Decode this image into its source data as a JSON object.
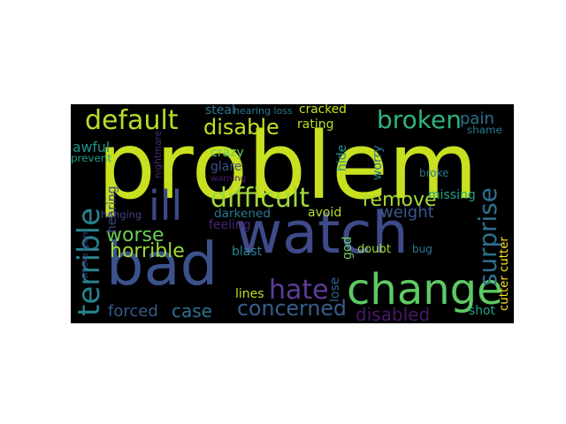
{
  "words": [
    {
      "text": "problem",
      "color": "#c8e020"
    },
    {
      "text": "watch",
      "color": "#3e4a89"
    },
    {
      "text": "bad",
      "color": "#3b528b"
    },
    {
      "text": "change",
      "color": "#5ec962"
    },
    {
      "text": "ill",
      "color": "#3e4989"
    },
    {
      "text": "terrible",
      "color": "#26828e"
    },
    {
      "text": "default",
      "color": "#b5de2b"
    },
    {
      "text": "difficult",
      "color": "#a0da39"
    },
    {
      "text": "broken",
      "color": "#2eb37c"
    },
    {
      "text": "hate",
      "color": "#5e3c99"
    },
    {
      "text": "concerned",
      "color": "#365d8d"
    },
    {
      "text": "surprise",
      "color": "#2d708e"
    },
    {
      "text": "disable",
      "color": "#c2df23"
    },
    {
      "text": "worse",
      "color": "#6ccd5a"
    },
    {
      "text": "horrible",
      "color": "#9dd93b"
    },
    {
      "text": "remove",
      "color": "#a8db34"
    },
    {
      "text": "disabled",
      "color": "#48186a"
    },
    {
      "text": "weight",
      "color": "#39568c"
    },
    {
      "text": "case",
      "color": "#2c728e"
    },
    {
      "text": "forced",
      "color": "#38588c"
    },
    {
      "text": "pain",
      "color": "#2c728e"
    },
    {
      "text": "awful",
      "color": "#21918c"
    },
    {
      "text": "prevent",
      "color": "#1f9e89"
    },
    {
      "text": "nightmare",
      "color": "#472d7b"
    },
    {
      "text": "crazy",
      "color": "#6ccd5a"
    },
    {
      "text": "glare",
      "color": "#3b528b"
    },
    {
      "text": "warning",
      "color": "#481a6c"
    },
    {
      "text": "rating",
      "color": "#b5de2b"
    },
    {
      "text": "cracked",
      "color": "#c8e020"
    },
    {
      "text": "steal",
      "color": "#2a788e"
    },
    {
      "text": "hearing loss",
      "color": "#2a788e"
    },
    {
      "text": "shame",
      "color": "#2a788e"
    },
    {
      "text": "hide",
      "color": "#21918c"
    },
    {
      "text": "worry",
      "color": "#2a788e"
    },
    {
      "text": "broke",
      "color": "#2c728e"
    },
    {
      "text": "missing",
      "color": "#20a486"
    },
    {
      "text": "darkened",
      "color": "#2a788e"
    },
    {
      "text": "avoid",
      "color": "#b5de2b"
    },
    {
      "text": "feeling",
      "color": "#482475"
    },
    {
      "text": "hanging",
      "color": "#414487"
    },
    {
      "text": "hearing",
      "color": "#3e4989"
    },
    {
      "text": "smoke glare",
      "color": "#414487"
    },
    {
      "text": "lose",
      "color": "#355f8d"
    },
    {
      "text": "god",
      "color": "#6ccd5a"
    },
    {
      "text": "doubt",
      "color": "#a0da39"
    },
    {
      "text": "bug",
      "color": "#2a788e"
    },
    {
      "text": "blast",
      "color": "#26828e"
    },
    {
      "text": "lines",
      "color": "#c2df23"
    },
    {
      "text": "shot",
      "color": "#1fa187"
    },
    {
      "text": "cutter cutter",
      "color": "#fde725"
    }
  ]
}
